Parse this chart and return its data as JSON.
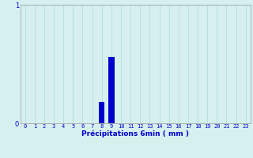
{
  "hours": [
    0,
    1,
    2,
    3,
    4,
    5,
    6,
    7,
    8,
    9,
    10,
    11,
    12,
    13,
    14,
    15,
    16,
    17,
    18,
    19,
    20,
    21,
    22,
    23
  ],
  "values": [
    0,
    0,
    0,
    0,
    0,
    0,
    0,
    0,
    0.18,
    0.56,
    0,
    0,
    0,
    0,
    0,
    0,
    0,
    0,
    0,
    0,
    0,
    0,
    0,
    0
  ],
  "bar_color": "#0000cc",
  "background_color": "#d6f0f0",
  "grid_color": "#b8e0e0",
  "axis_color": "#999999",
  "text_color": "#0000cc",
  "xlabel": "Précipitations 6min ( mm )",
  "ylim": [
    0,
    1.0
  ],
  "yticks": [
    0,
    1
  ],
  "xlim": [
    -0.5,
    23.5
  ],
  "xtick_labels": [
    "0",
    "1",
    "2",
    "3",
    "4",
    "5",
    "6",
    "7",
    "8",
    "9",
    "10",
    "11",
    "12",
    "13",
    "14",
    "15",
    "16",
    "17",
    "18",
    "19",
    "20",
    "21",
    "22",
    "23"
  ],
  "bar_width": 0.6
}
